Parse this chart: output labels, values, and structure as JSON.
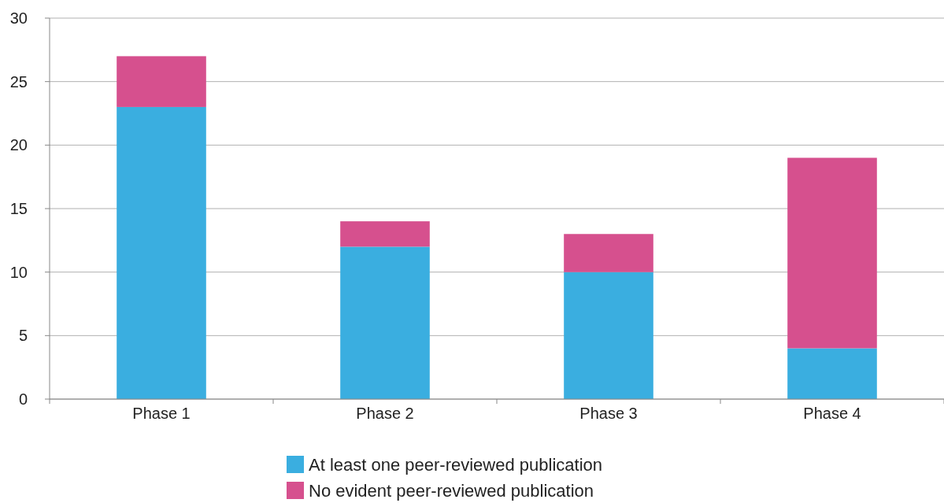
{
  "chart_data": {
    "type": "bar",
    "stacked": true,
    "categories": [
      "Phase 1",
      "Phase 2",
      "Phase 3",
      "Phase 4"
    ],
    "series": [
      {
        "name": "At least one peer-reviewed publication",
        "color": "#3aaee0",
        "values": [
          23,
          12,
          10,
          4
        ]
      },
      {
        "name": "No evident peer-reviewed publication",
        "color": "#d6508e",
        "values": [
          4,
          2,
          3,
          15
        ]
      }
    ],
    "ylim": [
      0,
      30
    ],
    "yticks": [
      0,
      5,
      10,
      15,
      20,
      25,
      30
    ],
    "grid": "y",
    "legend": "bottom"
  }
}
